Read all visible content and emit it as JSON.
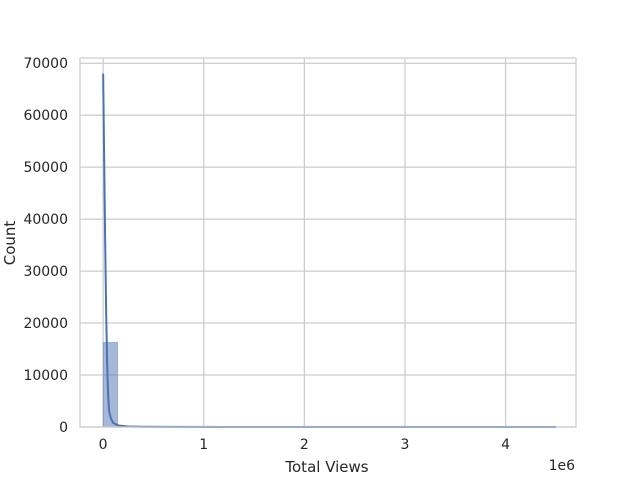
{
  "chart_data": {
    "type": "bar",
    "title": "",
    "xlabel": "Total Views",
    "ylabel": "Count",
    "x_offset_label": "1e6",
    "xlim": [
      -230000,
      4700000
    ],
    "ylim": [
      0,
      71000
    ],
    "x_ticks": [
      {
        "value": 0,
        "label": "0"
      },
      {
        "value": 1000000,
        "label": "1"
      },
      {
        "value": 2000000,
        "label": "2"
      },
      {
        "value": 3000000,
        "label": "3"
      },
      {
        "value": 4000000,
        "label": "4"
      }
    ],
    "y_ticks": [
      {
        "value": 0,
        "label": "0"
      },
      {
        "value": 10000,
        "label": "10000"
      },
      {
        "value": 20000,
        "label": "20000"
      },
      {
        "value": 30000,
        "label": "30000"
      },
      {
        "value": 40000,
        "label": "40000"
      },
      {
        "value": 50000,
        "label": "50000"
      },
      {
        "value": 60000,
        "label": "60000"
      },
      {
        "value": 70000,
        "label": "70000"
      }
    ],
    "grid": true,
    "bars": [
      {
        "x0": 0,
        "x1": 145000,
        "count": 16300
      },
      {
        "x0": 145000,
        "x1": 290000,
        "count": 200
      },
      {
        "x0": 290000,
        "x1": 435000,
        "count": 60
      },
      {
        "x0": 435000,
        "x1": 580000,
        "count": 30
      },
      {
        "x0": 580000,
        "x1": 725000,
        "count": 15
      },
      {
        "x0": 725000,
        "x1": 870000,
        "count": 10
      },
      {
        "x0": 870000,
        "x1": 1015000,
        "count": 6
      },
      {
        "x0": 1015000,
        "x1": 1160000,
        "count": 4
      },
      {
        "x0": 1160000,
        "x1": 1305000,
        "count": 3
      },
      {
        "x0": 1305000,
        "x1": 1450000,
        "count": 2
      }
    ],
    "kde_line": {
      "x": [
        0,
        10000,
        20000,
        30000,
        40000,
        50000,
        60000,
        80000,
        100000,
        150000,
        250000,
        400000,
        700000,
        1200000,
        2000000,
        3000000,
        4500000
      ],
      "y": [
        68000,
        52000,
        36000,
        22000,
        12000,
        6000,
        3000,
        1500,
        800,
        300,
        100,
        40,
        15,
        5,
        2,
        1,
        0
      ]
    },
    "colors": {
      "bar": "#4c72b0",
      "line": "#4c72b0",
      "grid": "#cccccc",
      "text": "#262626"
    }
  }
}
